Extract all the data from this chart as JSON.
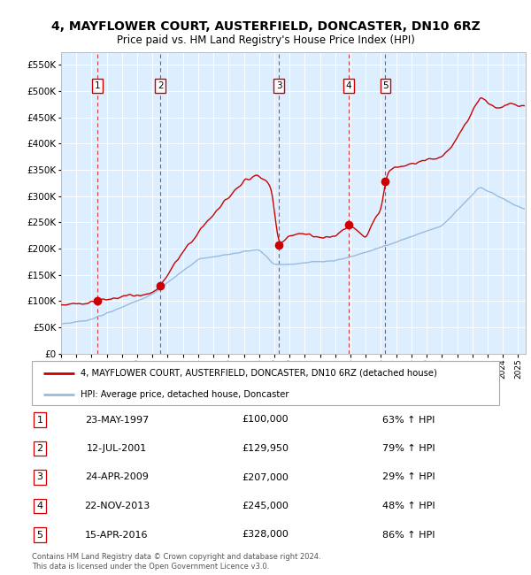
{
  "title": "4, MAYFLOWER COURT, AUSTERFIELD, DONCASTER, DN10 6RZ",
  "subtitle": "Price paid vs. HM Land Registry's House Price Index (HPI)",
  "sales": [
    {
      "num": 1,
      "date_label": "23-MAY-1997",
      "year": 1997.39,
      "price": 100000,
      "pct": "63% ↑ HPI"
    },
    {
      "num": 2,
      "date_label": "12-JUL-2001",
      "year": 2001.53,
      "price": 129950,
      "pct": "79% ↑ HPI"
    },
    {
      "num": 3,
      "date_label": "24-APR-2009",
      "year": 2009.31,
      "price": 207000,
      "pct": "29% ↑ HPI"
    },
    {
      "num": 4,
      "date_label": "22-NOV-2013",
      "year": 2013.89,
      "price": 245000,
      "pct": "48% ↑ HPI"
    },
    {
      "num": 5,
      "date_label": "15-APR-2016",
      "year": 2016.29,
      "price": 328000,
      "pct": "86% ↑ HPI"
    }
  ],
  "property_line_color": "#cc0000",
  "hpi_line_color": "#99bbdd",
  "vline_color": "#cc0000",
  "plot_bg_color": "#ddeeff",
  "ylim": [
    0,
    575000
  ],
  "xlim_start": 1995.0,
  "xlim_end": 2025.5,
  "ylabel_ticks": [
    0,
    50000,
    100000,
    150000,
    200000,
    250000,
    300000,
    350000,
    400000,
    450000,
    500000,
    550000
  ],
  "footer": "Contains HM Land Registry data © Crown copyright and database right 2024.\nThis data is licensed under the Open Government Licence v3.0.",
  "legend_property": "4, MAYFLOWER COURT, AUSTERFIELD, DONCASTER, DN10 6RZ (detached house)",
  "legend_hpi": "HPI: Average price, detached house, Doncaster"
}
